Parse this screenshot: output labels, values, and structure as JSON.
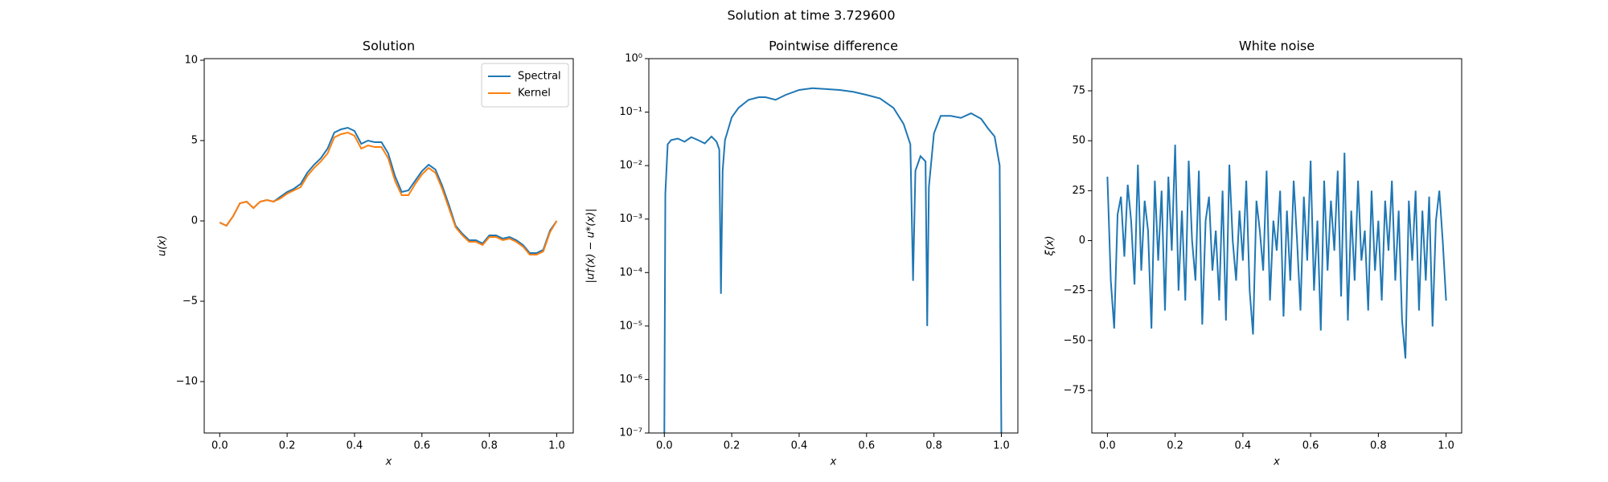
{
  "title": "Solution at time 3.729600",
  "chart_data": [
    {
      "type": "line",
      "title": "Solution",
      "xlabel": "x",
      "ylabel": "u(x)",
      "xlim": [
        -0.046,
        1.049
      ],
      "ylim": [
        -13.2,
        10.1
      ],
      "xticks": [
        {
          "value": 0,
          "label": "0.0"
        },
        0.2,
        0.4,
        0.6,
        0.8,
        {
          "value": 1,
          "label": "1.0"
        }
      ],
      "yticks": [
        {
          "value": -10,
          "label": "−10"
        },
        {
          "value": -5,
          "label": "−5"
        },
        0,
        5,
        10
      ],
      "legend": "upper right",
      "x": [
        0,
        0.02,
        0.04,
        0.06,
        0.08,
        0.1,
        0.12,
        0.14,
        0.16,
        0.18,
        0.2,
        0.22,
        0.24,
        0.26,
        0.28,
        0.3,
        0.32,
        0.34,
        0.36,
        0.38,
        0.4,
        0.42,
        0.44,
        0.46,
        0.48,
        0.5,
        0.52,
        0.54,
        0.56,
        0.58,
        0.6,
        0.62,
        0.64,
        0.66,
        0.68,
        0.7,
        0.72,
        0.74,
        0.76,
        0.78,
        0.8,
        0.82,
        0.84,
        0.86,
        0.88,
        0.9,
        0.92,
        0.94,
        0.96,
        0.98,
        1
      ],
      "series": [
        {
          "name": "Spectral",
          "color": "#1f77b4",
          "values": [
            -0.1,
            -0.3,
            0.3,
            1.1,
            1.2,
            0.8,
            1.2,
            1.3,
            1.2,
            1.5,
            1.8,
            2.0,
            2.3,
            3.0,
            3.5,
            3.9,
            4.5,
            5.5,
            5.7,
            5.8,
            5.6,
            4.8,
            5.0,
            4.9,
            4.9,
            4.2,
            2.8,
            1.8,
            1.9,
            2.5,
            3.1,
            3.5,
            3.2,
            2.2,
            1.0,
            -0.3,
            -0.8,
            -1.2,
            -1.2,
            -1.4,
            -0.9,
            -0.9,
            -1.1,
            -1.0,
            -1.2,
            -1.5,
            -2.0,
            -2.0,
            -1.8,
            -0.6,
            0.0
          ]
        },
        {
          "name": "Kernel",
          "color": "#ff7f0e",
          "values": [
            -0.1,
            -0.3,
            0.3,
            1.1,
            1.2,
            0.8,
            1.2,
            1.3,
            1.2,
            1.4,
            1.7,
            1.9,
            2.1,
            2.8,
            3.3,
            3.7,
            4.2,
            5.2,
            5.4,
            5.5,
            5.3,
            4.5,
            4.7,
            4.6,
            4.6,
            3.9,
            2.5,
            1.6,
            1.6,
            2.3,
            2.9,
            3.3,
            3.0,
            2.0,
            0.8,
            -0.4,
            -0.9,
            -1.3,
            -1.3,
            -1.5,
            -1.0,
            -1.0,
            -1.2,
            -1.1,
            -1.3,
            -1.6,
            -2.1,
            -2.1,
            -1.9,
            -0.7,
            0.0
          ]
        }
      ]
    },
    {
      "type": "line",
      "title": "Pointwise difference",
      "xlabel": "x",
      "ylabel": "|u†(x) − u*(x)|",
      "log_y": true,
      "xlim": [
        -0.046,
        1.049
      ],
      "ylim": [
        1e-07,
        1
      ],
      "xticks": [
        {
          "value": 0,
          "label": "0.0"
        },
        0.2,
        0.4,
        0.6,
        0.8,
        {
          "value": 1,
          "label": "1.0"
        }
      ],
      "yticks": [
        {
          "value": 1e-07,
          "label": "10⁻⁷"
        },
        {
          "value": 1e-06,
          "label": "10⁻⁶"
        },
        {
          "value": 1e-05,
          "label": "10⁻⁵"
        },
        {
          "value": 0.0001,
          "label": "10⁻⁴"
        },
        {
          "value": 0.001,
          "label": "10⁻³"
        },
        {
          "value": 0.01,
          "label": "10⁻²"
        },
        {
          "value": 0.1,
          "label": "10⁻¹"
        },
        {
          "value": 1,
          "label": "10⁰"
        }
      ],
      "color": "#1f77b4",
      "x": [
        0,
        0.003,
        0.01,
        0.02,
        0.04,
        0.06,
        0.08,
        0.1,
        0.12,
        0.14,
        0.155,
        0.163,
        0.168,
        0.173,
        0.18,
        0.2,
        0.22,
        0.25,
        0.28,
        0.3,
        0.33,
        0.36,
        0.4,
        0.44,
        0.48,
        0.52,
        0.56,
        0.6,
        0.64,
        0.68,
        0.71,
        0.73,
        0.738,
        0.745,
        0.76,
        0.775,
        0.78,
        0.785,
        0.8,
        0.82,
        0.85,
        0.88,
        0.91,
        0.94,
        0.96,
        0.98,
        0.995,
        1
      ],
      "values": [
        1e-07,
        0.003,
        0.025,
        0.03,
        0.032,
        0.028,
        0.034,
        0.03,
        0.026,
        0.035,
        0.028,
        0.02,
        4e-05,
        0.008,
        0.03,
        0.08,
        0.12,
        0.17,
        0.19,
        0.19,
        0.17,
        0.21,
        0.26,
        0.28,
        0.27,
        0.26,
        0.24,
        0.21,
        0.18,
        0.12,
        0.06,
        0.025,
        7e-05,
        0.008,
        0.015,
        0.012,
        1e-05,
        0.004,
        0.04,
        0.085,
        0.085,
        0.078,
        0.095,
        0.075,
        0.05,
        0.035,
        0.01,
        1e-07
      ]
    },
    {
      "type": "line",
      "title": "White noise",
      "xlabel": "x",
      "ylabel": "ξ(x)",
      "xlim": [
        -0.046,
        1.046
      ],
      "ylim": [
        -96.3,
        91.1
      ],
      "xticks": [
        {
          "value": 0,
          "label": "0.0"
        },
        0.2,
        0.4,
        0.6,
        0.8,
        {
          "value": 1,
          "label": "1.0"
        }
      ],
      "yticks": [
        {
          "value": -75,
          "label": "−75"
        },
        {
          "value": -50,
          "label": "−50"
        },
        {
          "value": -25,
          "label": "−25"
        },
        0,
        25,
        50,
        75
      ],
      "color": "#1f77b4",
      "x": [
        0,
        0.01,
        0.02,
        0.03,
        0.04,
        0.05,
        0.06,
        0.07,
        0.08,
        0.09,
        0.1,
        0.11,
        0.12,
        0.13,
        0.14,
        0.15,
        0.16,
        0.17,
        0.18,
        0.19,
        0.2,
        0.21,
        0.22,
        0.23,
        0.24,
        0.25,
        0.26,
        0.27,
        0.28,
        0.29,
        0.3,
        0.31,
        0.32,
        0.33,
        0.34,
        0.35,
        0.36,
        0.37,
        0.38,
        0.39,
        0.4,
        0.41,
        0.42,
        0.43,
        0.44,
        0.45,
        0.46,
        0.47,
        0.48,
        0.49,
        0.5,
        0.51,
        0.52,
        0.53,
        0.54,
        0.55,
        0.56,
        0.57,
        0.58,
        0.59,
        0.6,
        0.61,
        0.62,
        0.63,
        0.64,
        0.65,
        0.66,
        0.67,
        0.68,
        0.69,
        0.7,
        0.71,
        0.72,
        0.73,
        0.74,
        0.75,
        0.76,
        0.77,
        0.78,
        0.79,
        0.8,
        0.81,
        0.82,
        0.83,
        0.84,
        0.85,
        0.86,
        0.87,
        0.88,
        0.89,
        0.9,
        0.91,
        0.92,
        0.93,
        0.94,
        0.95,
        0.96,
        0.97,
        0.98,
        0.99,
        1
      ],
      "values": [
        32,
        -20,
        -44,
        13,
        22,
        -8,
        28,
        10,
        -22,
        38,
        -15,
        20,
        5,
        -44,
        30,
        -10,
        25,
        -35,
        32,
        -5,
        48,
        -25,
        15,
        -30,
        40,
        0,
        -20,
        35,
        -42,
        10,
        22,
        -15,
        5,
        -30,
        25,
        -40,
        38,
        0,
        -20,
        15,
        -10,
        30,
        -25,
        -47,
        20,
        5,
        -15,
        35,
        -30,
        10,
        -5,
        25,
        -38,
        15,
        -20,
        30,
        0,
        -35,
        22,
        -10,
        40,
        -25,
        10,
        -45,
        30,
        -15,
        20,
        -5,
        35,
        -28,
        44,
        -40,
        15,
        -20,
        30,
        -10,
        5,
        -35,
        25,
        -15,
        10,
        -30,
        20,
        -5,
        30,
        -20,
        15,
        -40,
        -59,
        20,
        -10,
        25,
        -35,
        15,
        -20,
        22,
        -43,
        10,
        25,
        0,
        -30
      ]
    }
  ]
}
